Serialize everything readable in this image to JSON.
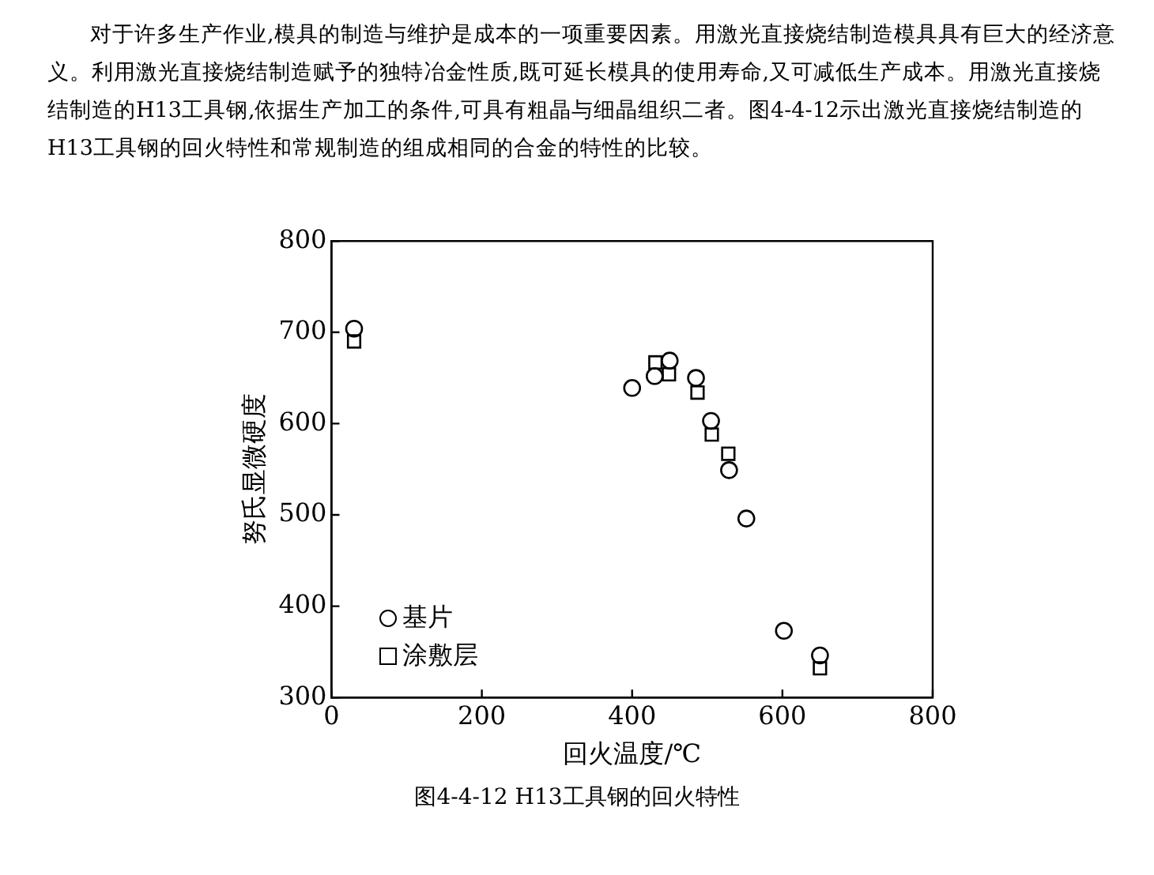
{
  "chart_data": {
    "type": "scatter",
    "title": "图4-4-12 H13工具钢的回火特性",
    "annotations": [
      "对于许多生产作业,模具的制造与维护是成本的一项重要因素。用激光直接烧结制造模具具有巨大的经济意义。利用激光直接烧结制造赋予的独特冶金性质,既可延长模具的使用寿命,又可减低生产成本。用激光直接烧结制造的H13工具钢,依据生产加工的条件,可具有粗晶与细晶组织二者。图4-4-12示出激光直接烧结制造的H13工具钢的回火特性和常规制造的组成相同的合金的特性的比较。"
    ],
    "xlabel": "回火温度/℃",
    "ylabel": "努氏显微硬度",
    "xlim": [
      0,
      800
    ],
    "xticks": [
      0,
      200,
      400,
      600,
      800
    ],
    "ylim": [
      300,
      800
    ],
    "yticks": [
      300,
      400,
      500,
      600,
      700,
      800
    ],
    "grid": false,
    "legend": "bottom left",
    "series": [
      {
        "name": "基片",
        "color": "#000000",
        "marker": "circle",
        "x": [
          30,
          400,
          430,
          450,
          485,
          505,
          529,
          552,
          602,
          650
        ],
        "values": [
          704,
          639,
          652,
          669,
          650,
          603,
          549,
          496,
          373,
          346
        ]
      },
      {
        "name": "涂敷层",
        "color": "#000000",
        "marker": "square",
        "x": [
          30,
          431,
          449,
          487,
          506,
          528,
          650
        ],
        "values": [
          690,
          667,
          654,
          634,
          588,
          567,
          332
        ]
      }
    ]
  }
}
